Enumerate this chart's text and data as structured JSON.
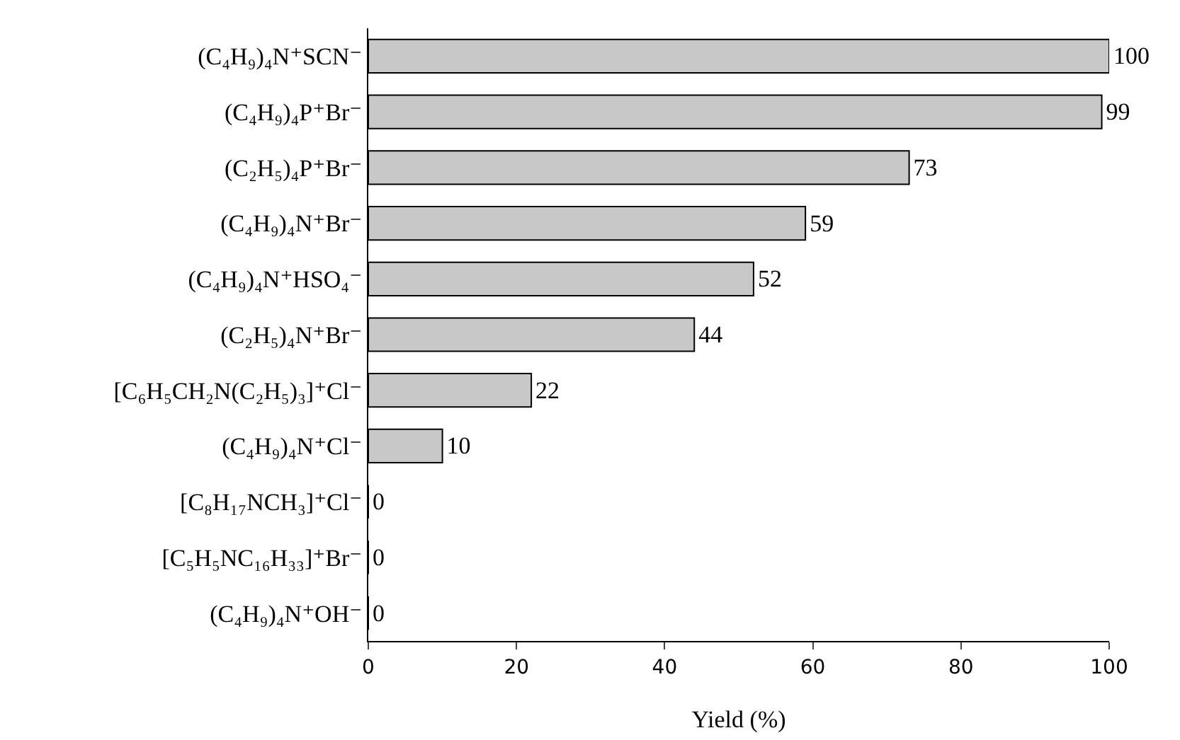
{
  "chart_data": {
    "type": "bar",
    "orientation": "horizontal",
    "xlabel": "Yield (%)",
    "categories": [
      "(C₄H₉)₄N⁺SCN⁻",
      "(C₄H₉)₄P⁺Br⁻",
      "(C₂H₅)₄P⁺Br⁻",
      "(C₄H₉)₄N⁺Br⁻",
      "(C₄H₉)₄N⁺HSO₄⁻",
      "(C₂H₅)₄N⁺Br⁻",
      "[C₆H₅CH₂N(C₂H₅)₃]⁺Cl⁻",
      "(C₄H₉)₄N⁺Cl⁻",
      "[C₈H₁₇NCH₃]⁺Cl⁻",
      "[C₅H₅NC₁₆H₃₃]⁺Br⁻",
      "(C₄H₉)₄N⁺OH⁻"
    ],
    "values": [
      100,
      99,
      73,
      59,
      52,
      44,
      22,
      10,
      0,
      0,
      0
    ],
    "color": "#c8c8c8",
    "xlim": [
      0,
      100
    ],
    "xticks": [
      0,
      20,
      40,
      60,
      80,
      100
    ],
    "data_labels": true
  }
}
